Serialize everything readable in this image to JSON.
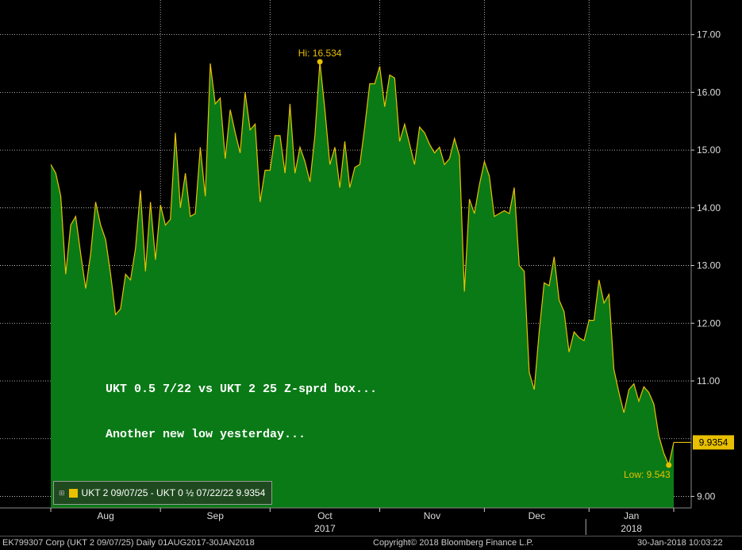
{
  "annotation": {
    "line1": "UKT 0.5 7/22 vs UKT 2 25 Z-sprd box...",
    "line2": "Another new low yesterday..."
  },
  "legend": {
    "expander": "⊞",
    "label": "UKT 2 09/07/25 - UKT 0 ½ 07/22/22 9.9354"
  },
  "footer": {
    "left": "EK799307 Corp (UKT 2 09/07/25)  Daily 01AUG2017-30JAN2018",
    "center": "Copyright© 2018 Bloomberg Finance L.P.",
    "right": "30-Jan-2018 10:03:22"
  },
  "colors": {
    "background": "#000000",
    "area_fill": "#0a7a16",
    "line": "#e8c000",
    "grid": "#ffffff"
  },
  "chart_data": {
    "type": "area",
    "ylim": [
      8.8,
      17.6
    ],
    "yticks": [
      "17.00",
      "16.00",
      "15.00",
      "14.00",
      "13.00",
      "12.00",
      "11.00",
      "9.00"
    ],
    "ytick_values": [
      17,
      16,
      15,
      14,
      13,
      12,
      11,
      9
    ],
    "month_labels": [
      "Aug",
      "Sep",
      "Oct",
      "Nov",
      "Dec",
      "Jan"
    ],
    "year_labels": [
      "2017",
      "2018"
    ],
    "grid": true,
    "last_value_label": "9.9354",
    "last_value": 9.9354,
    "hi_label": "Hi: 16.534",
    "hi_value": 16.534,
    "low_label": "Low: 9.543",
    "low_value": 9.543,
    "series": [
      {
        "name": "UKT 2 09/07/25 - UKT 0 ½ 07/22/22",
        "values": [
          14.75,
          14.6,
          14.2,
          12.85,
          13.7,
          13.85,
          13.2,
          12.6,
          13.2,
          14.1,
          13.7,
          13.45,
          12.85,
          12.15,
          12.25,
          12.85,
          12.75,
          13.3,
          14.3,
          12.9,
          14.1,
          13.1,
          14.05,
          13.7,
          13.8,
          15.3,
          14,
          14.6,
          13.85,
          13.9,
          15.05,
          14.2,
          16.5,
          15.8,
          15.9,
          14.85,
          15.7,
          15.3,
          14.95,
          16,
          15.35,
          15.45,
          14.1,
          14.65,
          14.65,
          15.25,
          15.25,
          14.6,
          15.8,
          14.6,
          15.05,
          14.8,
          14.45,
          15.25,
          16.53,
          15.7,
          14.75,
          15.05,
          14.35,
          15.15,
          14.35,
          14.7,
          14.75,
          15.4,
          16.15,
          16.15,
          16.45,
          15.75,
          16.3,
          16.25,
          15.15,
          15.45,
          15.1,
          14.75,
          15.4,
          15.3,
          15.1,
          14.95,
          15.05,
          14.75,
          14.85,
          15.2,
          14.9,
          12.55,
          14.15,
          13.9,
          14.4,
          14.8,
          14.55,
          13.85,
          13.9,
          13.95,
          13.9,
          14.35,
          13,
          12.9,
          11.15,
          10.85,
          11.85,
          12.7,
          12.65,
          13.15,
          12.4,
          12.2,
          11.5,
          11.85,
          11.75,
          11.7,
          12.05,
          12.05,
          12.75,
          12.35,
          12.5,
          11.2,
          10.8,
          10.45,
          10.85,
          10.95,
          10.65,
          10.9,
          10.8,
          10.6,
          10.05,
          9.75,
          9.543,
          9.9354
        ]
      }
    ]
  }
}
